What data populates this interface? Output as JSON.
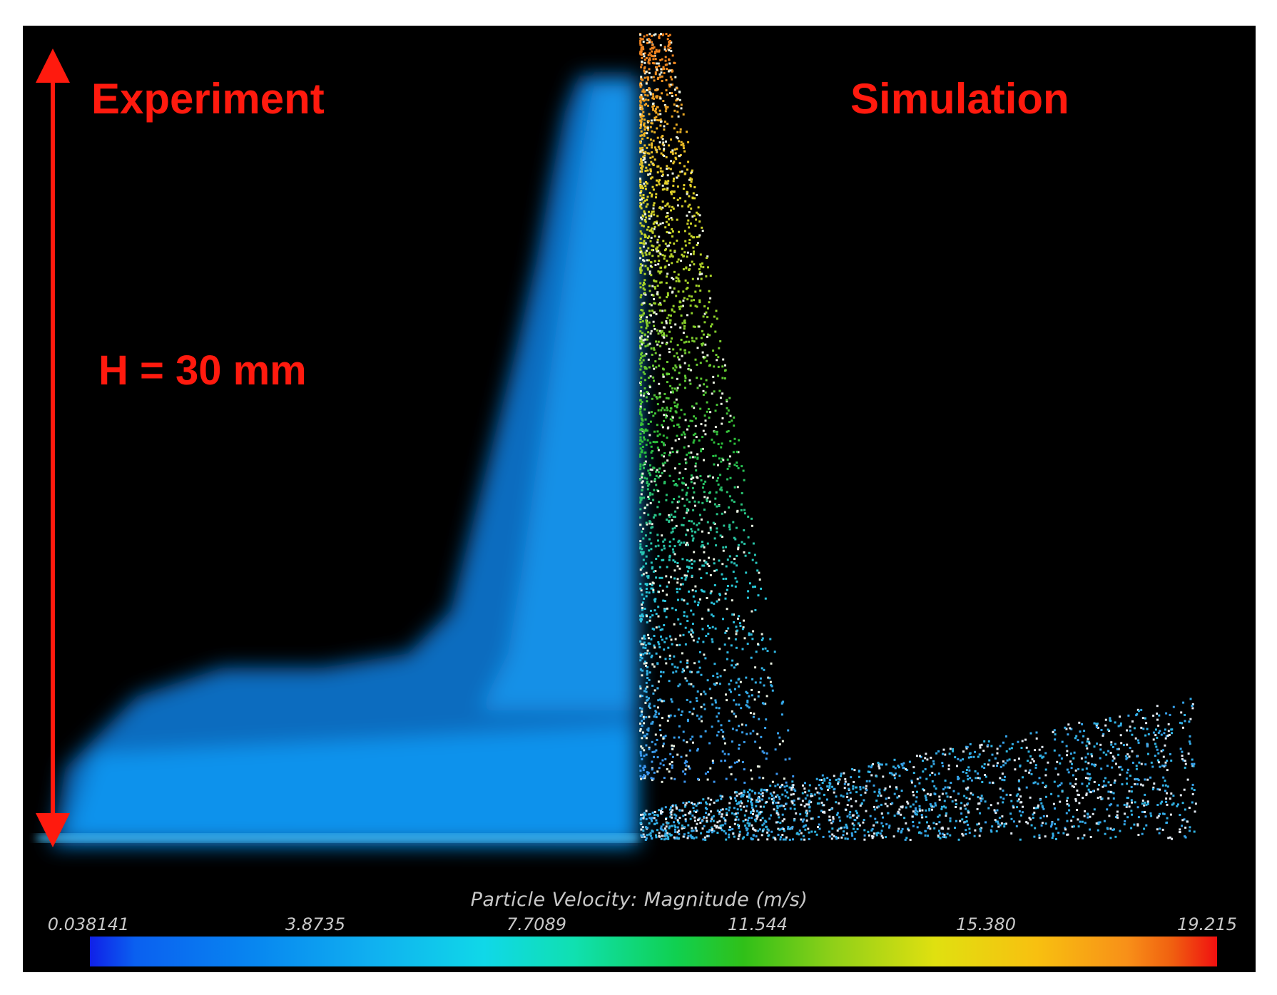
{
  "labels": {
    "experiment": "Experiment",
    "simulation": "Simulation",
    "height": "H = 30 mm"
  },
  "colorbar": {
    "title": "Particle Velocity: Magnitude (m/s)",
    "ticks": [
      "0.038141",
      "3.8735",
      "7.7089",
      "11.544",
      "15.380",
      "19.215"
    ]
  },
  "colors": {
    "label_red": "#ff1a0e",
    "experiment_blue": "#0a8cf0",
    "background": "#000000"
  }
}
